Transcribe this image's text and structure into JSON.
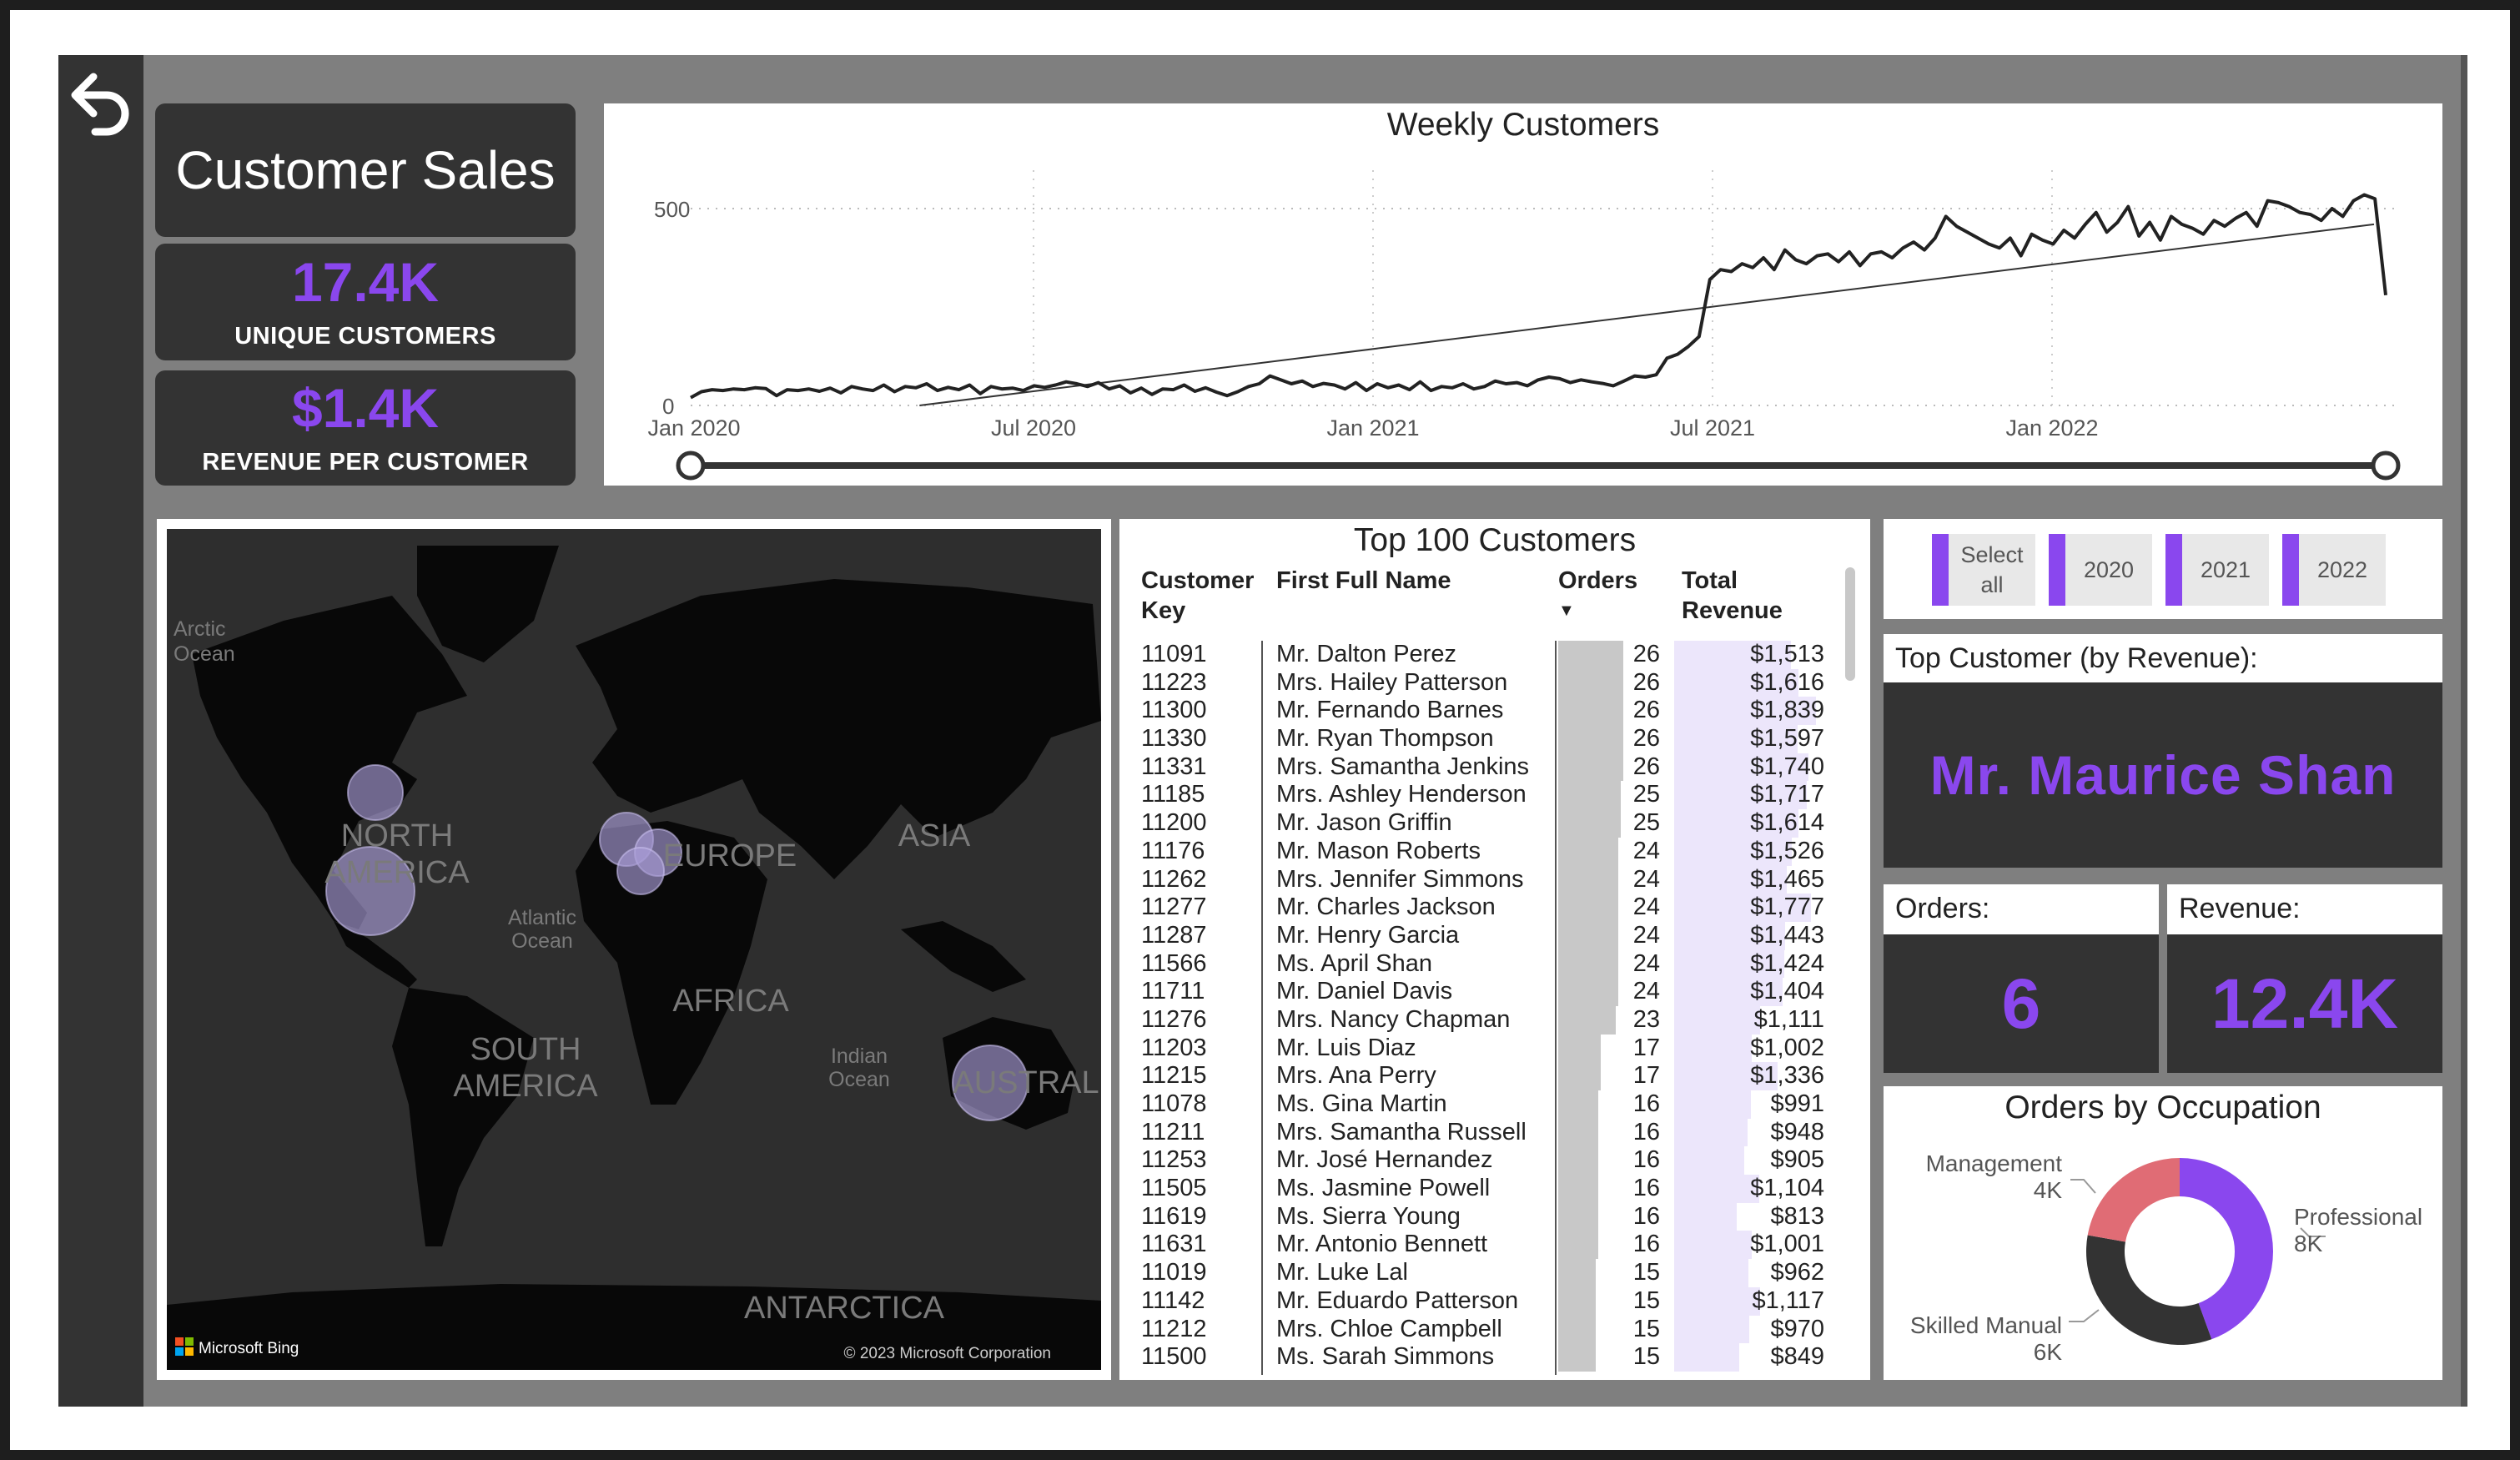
{
  "report": {
    "title": "Customer Sales",
    "kpis": [
      {
        "value": "17.4K",
        "label": "UNIQUE CUSTOMERS"
      },
      {
        "value": "$1.4K",
        "label": "REVENUE PER CUSTOMER"
      }
    ]
  },
  "colors": {
    "accent": "#8a47ee",
    "dark_card": "#333333",
    "canvas": "#7f7f7f",
    "donut_management": "#e06c75",
    "donut_professional": "#8a47ee",
    "donut_skilled": "#333333"
  },
  "icons": {
    "back": "back-arrow-icon",
    "bing": "microsoft-logo-icon"
  },
  "weekly_chart": {
    "title": "Weekly Customers",
    "y_ticks": [
      "0",
      "500"
    ],
    "x_ticks": [
      "Jan 2020",
      "Jul 2020",
      "Jan 2021",
      "Jul 2021",
      "Jan 2022"
    ]
  },
  "chart_data": {
    "type": "line",
    "title": "Weekly Customers",
    "ylim": [
      0,
      560
    ],
    "x_range": [
      "2020-01-01",
      "2022-09-05"
    ],
    "grid": "dotted",
    "series": [
      {
        "values": [
          20,
          35,
          40,
          38,
          42,
          40,
          45,
          43,
          25,
          40,
          38,
          42,
          36,
          44,
          32,
          48,
          42,
          38,
          52,
          35,
          48,
          45,
          55,
          38,
          46,
          40,
          52,
          30,
          48,
          42,
          44,
          38,
          50,
          46,
          52,
          60,
          55,
          48,
          58,
          42,
          50,
          32,
          44,
          28,
          42,
          40,
          52,
          36,
          45,
          34,
          25,
          35,
          48,
          55,
          75,
          65,
          55,
          62,
          48,
          56,
          52,
          42,
          58,
          38,
          55,
          45,
          52,
          40,
          60,
          38,
          48,
          45,
          55,
          42,
          48,
          62,
          55,
          58,
          50,
          65,
          72,
          68,
          58,
          65,
          60,
          56,
          50,
          62,
          75,
          72,
          78,
          120,
          130,
          150,
          175,
          320,
          345,
          340,
          360,
          350,
          375,
          345,
          395,
          370,
          360,
          380,
          385,
          365,
          390,
          355,
          385,
          390,
          375,
          400,
          415,
          395,
          425,
          480,
          455,
          440,
          425,
          410,
          400,
          425,
          380,
          435,
          420,
          410,
          445,
          425,
          460,
          490,
          440,
          465,
          505,
          430,
          465,
          420,
          480,
          460,
          450,
          435,
          470,
          455,
          475,
          490,
          455,
          520,
          515,
          505,
          490,
          485,
          470,
          500,
          480,
          520,
          535,
          525,
          280
        ]
      },
      {
        "name": "trend",
        "values": [
          0,
          460
        ]
      }
    ]
  },
  "map": {
    "labels": {
      "north_america": [
        "NORTH",
        "AMERICA"
      ],
      "south_america": [
        "SOUTH",
        "AMERICA"
      ],
      "europe": "EUROPE",
      "asia": "ASIA",
      "africa": "AFRICA",
      "australia": "AUSTRAL",
      "antarctica": "ANTARCTICA",
      "arctic_ocean": [
        "Arctic",
        "Ocean"
      ],
      "atlantic_ocean": [
        "Atlantic",
        "Ocean"
      ],
      "indian_ocean": [
        "Indian",
        "Ocean"
      ]
    },
    "bing_label": "Microsoft Bing",
    "copyright": "© 2023 Microsoft Corporation"
  },
  "table": {
    "title": "Top 100 Customers",
    "headers": {
      "key": [
        "Customer",
        "Key"
      ],
      "name": "First Full Name",
      "orders": "Orders",
      "revenue": [
        "Total",
        "Revenue"
      ]
    },
    "sort_indicator": "▼",
    "rows": [
      {
        "key": "11091",
        "name": "Mr. Dalton Perez",
        "orders": "26",
        "revenue": "$1,513"
      },
      {
        "key": "11223",
        "name": "Mrs. Hailey Patterson",
        "orders": "26",
        "revenue": "$1,616"
      },
      {
        "key": "11300",
        "name": "Mr. Fernando Barnes",
        "orders": "26",
        "revenue": "$1,839"
      },
      {
        "key": "11330",
        "name": "Mr. Ryan Thompson",
        "orders": "26",
        "revenue": "$1,597"
      },
      {
        "key": "11331",
        "name": "Mrs. Samantha Jenkins",
        "orders": "26",
        "revenue": "$1,740"
      },
      {
        "key": "11185",
        "name": "Mrs. Ashley Henderson",
        "orders": "25",
        "revenue": "$1,717"
      },
      {
        "key": "11200",
        "name": "Mr. Jason Griffin",
        "orders": "25",
        "revenue": "$1,614"
      },
      {
        "key": "11176",
        "name": "Mr. Mason Roberts",
        "orders": "24",
        "revenue": "$1,526"
      },
      {
        "key": "11262",
        "name": "Mrs. Jennifer Simmons",
        "orders": "24",
        "revenue": "$1,465"
      },
      {
        "key": "11277",
        "name": "Mr. Charles Jackson",
        "orders": "24",
        "revenue": "$1,777"
      },
      {
        "key": "11287",
        "name": "Mr. Henry Garcia",
        "orders": "24",
        "revenue": "$1,443"
      },
      {
        "key": "11566",
        "name": "Ms. April Shan",
        "orders": "24",
        "revenue": "$1,424"
      },
      {
        "key": "11711",
        "name": "Mr. Daniel Davis",
        "orders": "24",
        "revenue": "$1,404"
      },
      {
        "key": "11276",
        "name": "Mrs. Nancy Chapman",
        "orders": "23",
        "revenue": "$1,111"
      },
      {
        "key": "11203",
        "name": "Mr. Luis Diaz",
        "orders": "17",
        "revenue": "$1,002"
      },
      {
        "key": "11215",
        "name": "Mrs. Ana Perry",
        "orders": "17",
        "revenue": "$1,336"
      },
      {
        "key": "11078",
        "name": "Ms. Gina Martin",
        "orders": "16",
        "revenue": "$991"
      },
      {
        "key": "11211",
        "name": "Mrs. Samantha Russell",
        "orders": "16",
        "revenue": "$948"
      },
      {
        "key": "11253",
        "name": "Mr. José Hernandez",
        "orders": "16",
        "revenue": "$905"
      },
      {
        "key": "11505",
        "name": "Ms. Jasmine Powell",
        "orders": "16",
        "revenue": "$1,104"
      },
      {
        "key": "11619",
        "name": "Ms. Sierra Young",
        "orders": "16",
        "revenue": "$813"
      },
      {
        "key": "11631",
        "name": "Mr. Antonio Bennett",
        "orders": "16",
        "revenue": "$1,001"
      },
      {
        "key": "11019",
        "name": "Mr. Luke Lal",
        "orders": "15",
        "revenue": "$962"
      },
      {
        "key": "11142",
        "name": "Mr. Eduardo Patterson",
        "orders": "15",
        "revenue": "$1,117"
      },
      {
        "key": "11212",
        "name": "Mrs. Chloe Campbell",
        "orders": "15",
        "revenue": "$970"
      },
      {
        "key": "11500",
        "name": "Ms. Sarah Simmons",
        "orders": "15",
        "revenue": "$849"
      }
    ]
  },
  "slicer": {
    "buttons": [
      {
        "label": "Select all",
        "line1": "Select",
        "line2": "all"
      },
      {
        "label": "2020"
      },
      {
        "label": "2021"
      },
      {
        "label": "2022"
      }
    ]
  },
  "top_customer": {
    "label": "Top Customer (by Revenue):",
    "name": "Mr. Maurice Shan",
    "orders_label": "Orders:",
    "orders_value": "6",
    "revenue_label": "Revenue:",
    "revenue_value": "12.4K"
  },
  "occupation": {
    "title": "Orders by Occupation",
    "slices": [
      {
        "name": "Professional",
        "value": 8000,
        "display": "8K"
      },
      {
        "name": "Skilled Manual",
        "value": 6000,
        "display": "6K"
      },
      {
        "name": "Management",
        "value": 4000,
        "display": "4K"
      }
    ]
  }
}
